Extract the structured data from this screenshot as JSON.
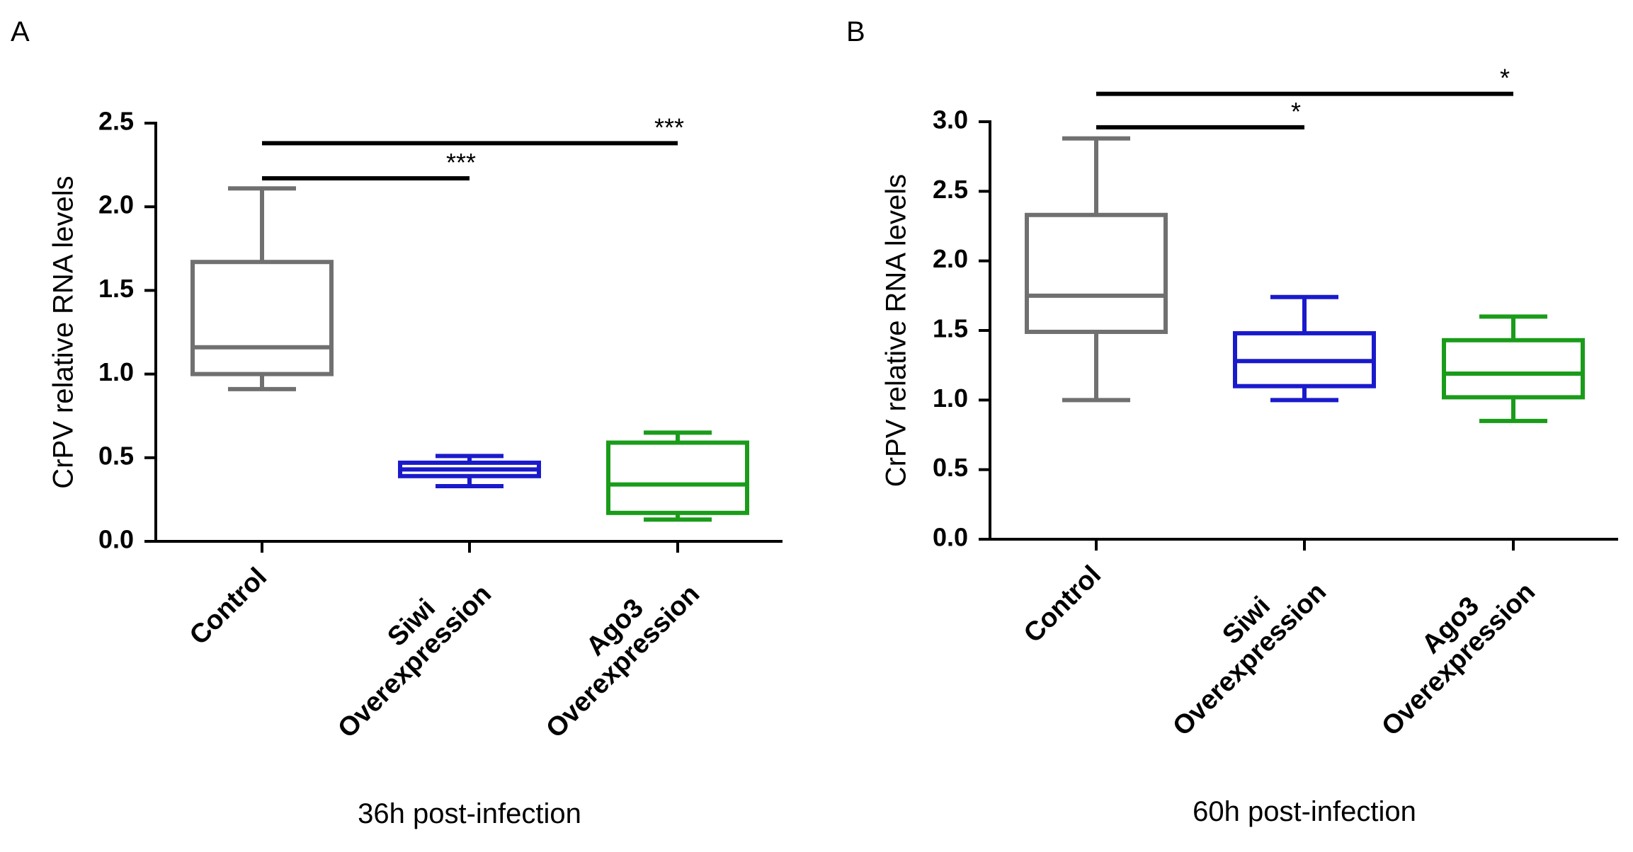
{
  "chart_data": [
    {
      "type": "box",
      "panel": "A",
      "ylabel": "CrPV relative RNA levels",
      "ylim": [
        0,
        2.5
      ],
      "yticks": [
        "0.0",
        "0.5",
        "1.0",
        "1.5",
        "2.0",
        "2.5"
      ],
      "yticks_values": [
        0,
        0.5,
        1.0,
        1.5,
        2.0,
        2.5
      ],
      "categories": [
        {
          "line1": "Control",
          "line2": ""
        },
        {
          "line1": "Siwi",
          "line2": "Overexpression"
        },
        {
          "line1": "Ago3",
          "line2": "Overexpression"
        }
      ],
      "boxes": [
        {
          "min": 0.91,
          "q1": 1.0,
          "median": 1.16,
          "q3": 1.67,
          "max": 2.11,
          "color": "#707070"
        },
        {
          "min": 0.33,
          "q1": 0.39,
          "median": 0.43,
          "q3": 0.47,
          "max": 0.51,
          "color": "#1a1acc"
        },
        {
          "min": 0.13,
          "q1": 0.17,
          "median": 0.34,
          "q3": 0.59,
          "max": 0.65,
          "color": "#1a9c1a"
        }
      ],
      "significance": [
        {
          "from": 0,
          "to": 1,
          "level": 2.17,
          "label": "***"
        },
        {
          "from": 0,
          "to": 2,
          "level": 2.38,
          "label": "***"
        }
      ],
      "caption": "36h post-infection"
    },
    {
      "type": "box",
      "panel": "B",
      "ylabel": "CrPV relative RNA levels",
      "ylim": [
        0,
        3.0
      ],
      "yticks": [
        "0.0",
        "0.5",
        "1.0",
        "1.5",
        "2.0",
        "2.5",
        "3.0"
      ],
      "yticks_values": [
        0,
        0.5,
        1.0,
        1.5,
        2.0,
        2.5,
        3.0
      ],
      "categories": [
        {
          "line1": "Control",
          "line2": ""
        },
        {
          "line1": "Siwi",
          "line2": "Overexpression"
        },
        {
          "line1": "Ago3",
          "line2": "Overexpression"
        }
      ],
      "boxes": [
        {
          "min": 1.0,
          "q1": 1.49,
          "median": 1.75,
          "q3": 2.33,
          "max": 2.88,
          "color": "#707070"
        },
        {
          "min": 1.0,
          "q1": 1.1,
          "median": 1.28,
          "q3": 1.48,
          "max": 1.74,
          "color": "#1a1acc"
        },
        {
          "min": 0.85,
          "q1": 1.02,
          "median": 1.19,
          "q3": 1.43,
          "max": 1.6,
          "color": "#1a9c1a"
        }
      ],
      "significance": [
        {
          "from": 0,
          "to": 1,
          "level": 2.96,
          "label": "*"
        },
        {
          "from": 0,
          "to": 2,
          "level": 3.2,
          "label": "*"
        }
      ],
      "caption": "60h post-infection"
    }
  ]
}
